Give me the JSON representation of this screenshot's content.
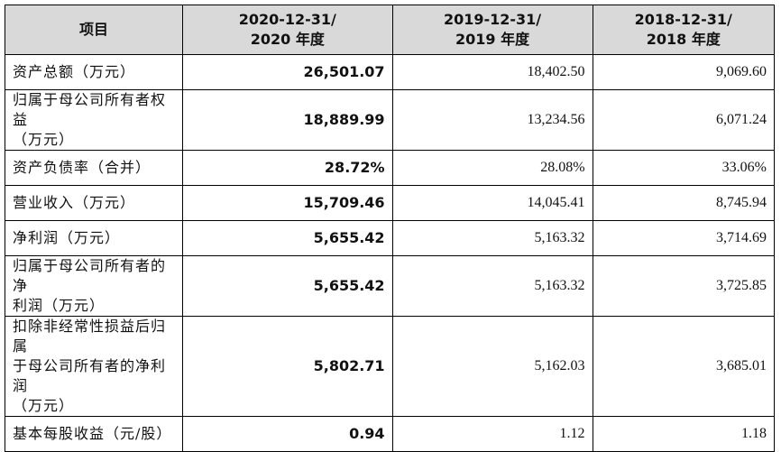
{
  "table": {
    "headers": {
      "item": "项目",
      "col2020": [
        "2020-12-31/",
        "2020 年度"
      ],
      "col2019": [
        "2019-12-31/",
        "2019 年度"
      ],
      "col2018": [
        "2018-12-31/",
        "2018 年度"
      ]
    },
    "rows": [
      {
        "label": [
          "资产总额（万元）"
        ],
        "v2020": "26,501.07",
        "v2019": "18,402.50",
        "v2018": "9,069.60"
      },
      {
        "label": [
          "归属于母公司所有者权益",
          "（万元）"
        ],
        "v2020": "18,889.99",
        "v2019": "13,234.56",
        "v2018": "6,071.24"
      },
      {
        "label": [
          "资产负债率（合并）"
        ],
        "v2020": "28.72%",
        "v2019": "28.08%",
        "v2018": "33.06%"
      },
      {
        "label": [
          "营业收入（万元）"
        ],
        "v2020": "15,709.46",
        "v2019": "14,045.41",
        "v2018": "8,745.94"
      },
      {
        "label": [
          "净利润（万元）"
        ],
        "v2020": "5,655.42",
        "v2019": "5,163.32",
        "v2018": "3,714.69"
      },
      {
        "label": [
          "归属于母公司所有者的净",
          "利润（万元）"
        ],
        "v2020": "5,655.42",
        "v2019": "5,163.32",
        "v2018": "3,725.85"
      },
      {
        "label": [
          "扣除非经常性损益后归属",
          "于母公司所有者的净利润",
          "（万元）"
        ],
        "v2020": "5,802.71",
        "v2019": "5,162.03",
        "v2018": "3,685.01"
      },
      {
        "label": [
          "基本每股收益（元/股）"
        ],
        "v2020": "0.94",
        "v2019": "1.12",
        "v2018": "1.18"
      }
    ]
  }
}
